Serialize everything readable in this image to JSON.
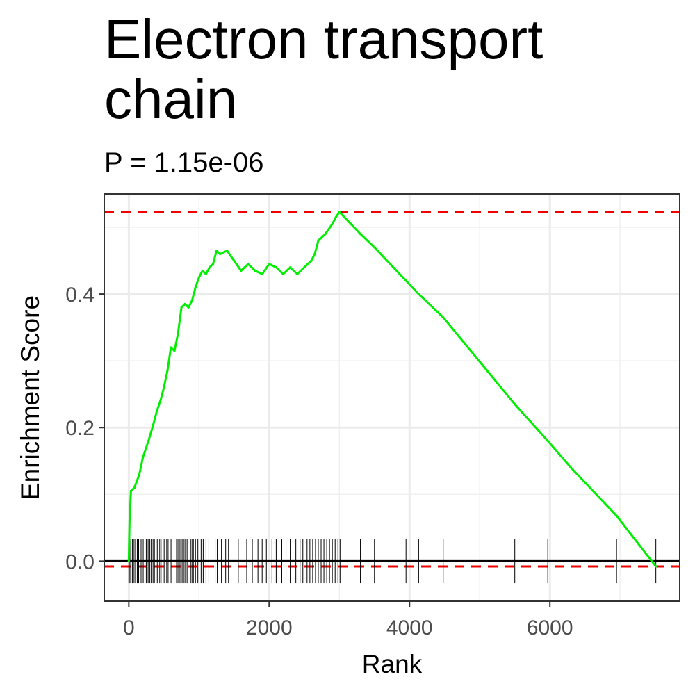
{
  "chart_data": {
    "type": "line",
    "title": "Electron transport chain",
    "subtitle": "P = 1.15e-06",
    "xlabel": "Rank",
    "ylabel": "Enrichment Score",
    "xlim": [
      -350,
      7850
    ],
    "ylim": [
      -0.06,
      0.55
    ],
    "x_ticks": [
      0,
      2000,
      4000,
      6000
    ],
    "x_tick_labels": [
      "0",
      "2000",
      "4000",
      "6000"
    ],
    "y_ticks": [
      0.0,
      0.2,
      0.4
    ],
    "y_tick_labels": [
      "0.0",
      "0.2",
      "0.4"
    ],
    "grid": true,
    "zero_line": 0.0,
    "max_dev_line": 0.523,
    "min_dev_line": -0.008,
    "series": [
      {
        "color": "#00ee00",
        "x": [
          0,
          10,
          30,
          80,
          150,
          200,
          280,
          350,
          400,
          450,
          500,
          550,
          600,
          650,
          700,
          750,
          800,
          850,
          900,
          950,
          1000,
          1050,
          1100,
          1150,
          1200,
          1250,
          1300,
          1400,
          1500,
          1600,
          1700,
          1800,
          1900,
          2000,
          2100,
          2200,
          2300,
          2400,
          2500,
          2600,
          2650,
          2700,
          2800,
          2900,
          2950,
          3000,
          3300,
          3500,
          3950,
          4130,
          4480,
          5500,
          5970,
          6300,
          6950,
          7510
        ],
        "y": [
          0.0,
          0.06,
          0.105,
          0.11,
          0.13,
          0.155,
          0.18,
          0.205,
          0.225,
          0.24,
          0.26,
          0.285,
          0.32,
          0.315,
          0.34,
          0.38,
          0.385,
          0.38,
          0.39,
          0.41,
          0.425,
          0.435,
          0.43,
          0.44,
          0.445,
          0.465,
          0.46,
          0.465,
          0.45,
          0.435,
          0.445,
          0.435,
          0.43,
          0.445,
          0.44,
          0.43,
          0.44,
          0.43,
          0.44,
          0.45,
          0.46,
          0.48,
          0.49,
          0.505,
          0.515,
          0.523,
          0.49,
          0.47,
          0.42,
          0.4,
          0.365,
          0.235,
          0.18,
          0.14,
          0.068,
          -0.008
        ]
      }
    ],
    "hits": [
      0,
      15,
      30,
      50,
      75,
      95,
      120,
      140,
      165,
      185,
      205,
      230,
      250,
      275,
      300,
      320,
      345,
      365,
      390,
      410,
      440,
      460,
      490,
      510,
      540,
      560,
      590,
      610,
      680,
      700,
      720,
      740,
      760,
      780,
      800,
      830,
      880,
      900,
      920,
      950,
      980,
      1000,
      1030,
      1060,
      1100,
      1140,
      1200,
      1230,
      1260,
      1320,
      1380,
      1420,
      1560,
      1680,
      1760,
      1840,
      1900,
      1960,
      2040,
      2100,
      2180,
      2240,
      2300,
      2380,
      2440,
      2480,
      2540,
      2580,
      2620,
      2660,
      2700,
      2740,
      2780,
      2820,
      2860,
      2900,
      2940,
      2980,
      3010,
      3300,
      3500,
      3950,
      4130,
      4480,
      5500,
      5970,
      6300,
      6950,
      7510
    ]
  }
}
